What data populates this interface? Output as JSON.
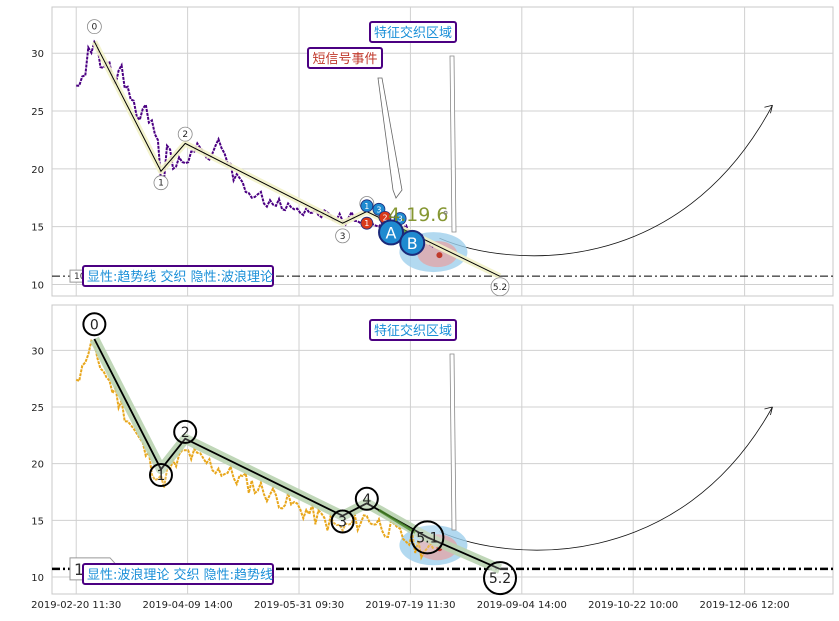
{
  "colors": {
    "grid": "#d0d0d0",
    "frame": "#c8c8c8",
    "top_price": "#4b0082",
    "bottom_price": "#e8a71c",
    "trend": "#000000",
    "channel_top": "#f2f2c8",
    "channel_bottom": "#b9d3b0",
    "callout_border": "#4b0082",
    "callout_text_blue": "#1a8fd8",
    "callout_text_red": "#c0392b",
    "event_red": "#d93a1a",
    "event_blue": "#1f8ad0",
    "blob_blue": "#9fd0ec",
    "blob_red": "#e8a0a0",
    "number_olive": "#7a8c1e"
  },
  "x_dates": [
    "2019-02-20 11:30",
    "2019-04-09 14:00",
    "2019-05-31 09:30",
    "2019-07-19 11:30",
    "2019-09-04 14:00",
    "2019-10-22 10:00",
    "2019-12-06 12:00"
  ],
  "chart_data": [
    {
      "type": "line",
      "ylim": [
        9,
        34
      ],
      "yticks": [
        10,
        15,
        20,
        25,
        30
      ],
      "support_level": 10.72,
      "support_label": "10.72",
      "series": [],
      "price_path": [
        [
          0,
          27.2
        ],
        [
          2,
          28.0
        ],
        [
          4,
          30.5
        ],
        [
          6,
          31.0
        ],
        [
          8,
          28.8
        ],
        [
          10,
          29.2
        ],
        [
          12,
          27.8
        ],
        [
          14,
          28.5
        ],
        [
          16,
          27.0
        ],
        [
          18,
          26.0
        ],
        [
          20,
          24.5
        ],
        [
          22,
          25.2
        ],
        [
          24,
          24.0
        ],
        [
          26,
          23.0
        ],
        [
          28,
          19.0
        ],
        [
          30,
          22.0
        ],
        [
          32,
          20.0
        ],
        [
          34,
          21.0
        ],
        [
          36,
          20.5
        ],
        [
          38,
          21.5
        ],
        [
          40,
          22.2
        ],
        [
          42,
          21.5
        ],
        [
          44,
          20.8
        ],
        [
          46,
          22.0
        ],
        [
          48,
          21.8
        ],
        [
          50,
          20.5
        ],
        [
          52,
          19.0
        ],
        [
          54,
          19.2
        ],
        [
          56,
          18.0
        ],
        [
          58,
          17.5
        ],
        [
          60,
          17.8
        ],
        [
          62,
          17.0
        ],
        [
          64,
          17.3
        ],
        [
          66,
          16.8
        ],
        [
          68,
          16.5
        ],
        [
          70,
          17.0
        ],
        [
          72,
          16.5
        ],
        [
          74,
          16.2
        ],
        [
          76,
          16.6
        ],
        [
          78,
          16.2
        ],
        [
          80,
          16.0
        ],
        [
          82,
          16.4
        ],
        [
          84,
          16.0
        ],
        [
          86,
          15.6
        ],
        [
          88,
          15.5
        ],
        [
          90,
          15.8
        ],
        [
          92,
          15.5
        ],
        [
          94,
          15.3
        ],
        [
          96,
          15.6
        ],
        [
          98,
          15.2
        ],
        [
          100,
          15.0
        ]
      ],
      "trend_points": [
        [
          6,
          31.0
        ],
        [
          28,
          19.8
        ],
        [
          36,
          22.2
        ],
        [
          88,
          15.3
        ],
        [
          96,
          16.3
        ],
        [
          140,
          10.7
        ]
      ],
      "wave_labels": [
        {
          "label": "0",
          "x": 6,
          "y": 32.3
        },
        {
          "label": "1",
          "x": 28,
          "y": 18.8
        },
        {
          "label": "2",
          "x": 36,
          "y": 23.0
        },
        {
          "label": "3",
          "x": 88,
          "y": 14.2
        },
        {
          "label": "4",
          "x": 96,
          "y": 17.0
        },
        {
          "label": "5.2",
          "x": 140,
          "y": 9.8
        }
      ],
      "event_text": "4.19.6",
      "event_markers": [
        {
          "label": "1",
          "x": 96,
          "y": 16.8,
          "color": "event_blue"
        },
        {
          "label": "3",
          "x": 100,
          "y": 16.5,
          "color": "event_blue"
        },
        {
          "label": "3",
          "x": 107,
          "y": 15.7,
          "color": "event_blue"
        },
        {
          "label": "1",
          "x": 96,
          "y": 15.3,
          "color": "event_red"
        },
        {
          "label": "2",
          "x": 102,
          "y": 15.8,
          "color": "event_red"
        },
        {
          "label": "",
          "x": 105,
          "y": 14.2,
          "color": "event_red"
        },
        {
          "label": "A",
          "x": 104,
          "y": 14.5,
          "color": "event_blue"
        },
        {
          "label": "B",
          "x": 111,
          "y": 13.6,
          "color": "event_blue"
        }
      ],
      "callouts": {
        "feature_zone": "特征交织区域",
        "short_signal": "短信号事件",
        "legend": "显性:趋势线 交织 隐性:波浪理论"
      },
      "forecast": {
        "start": [
          120,
          14.0
        ],
        "min": [
          150,
          13.1
        ],
        "end": [
          230,
          25.5
        ]
      }
    },
    {
      "type": "line",
      "ylim": [
        8.5,
        34
      ],
      "yticks": [
        10,
        15,
        20,
        25,
        30
      ],
      "support_level": 10.72,
      "support_label": "10.72",
      "series": [],
      "wave_labels": [
        {
          "label": "0",
          "x": 6,
          "y": 32.3
        },
        {
          "label": "1",
          "x": 28,
          "y": 19.0
        },
        {
          "label": "2",
          "x": 36,
          "y": 22.8
        },
        {
          "label": "3",
          "x": 88,
          "y": 14.9
        },
        {
          "label": "4",
          "x": 96,
          "y": 16.9
        },
        {
          "label": "5.1",
          "x": 116,
          "y": 13.5
        },
        {
          "label": "5.2",
          "x": 140,
          "y": 9.9
        }
      ],
      "trend_points": [
        [
          6,
          31.0
        ],
        [
          28,
          19.5
        ],
        [
          36,
          22.2
        ],
        [
          88,
          15.4
        ],
        [
          96,
          16.5
        ],
        [
          116,
          13.5
        ],
        [
          140,
          10.7
        ]
      ],
      "callouts": {
        "feature_zone": "特征交织区域",
        "legend": "显性:波浪理论 交织 隐性:趋势线"
      },
      "forecast": {
        "start": [
          120,
          14.0
        ],
        "min": [
          150,
          13.0
        ],
        "end": [
          230,
          25.0
        ]
      }
    }
  ]
}
